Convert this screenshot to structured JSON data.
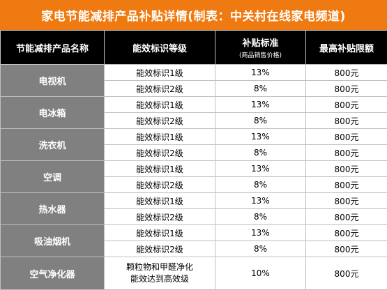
{
  "title": "家电节能减排产品补贴详情(制表：中关村在线家电频道)",
  "headers": {
    "name": "节能减排产品名称",
    "level": "能效标识等级",
    "subsidy": "补贴标准",
    "subsidy_note": "(商品销售价格)",
    "max": "最高补贴限额"
  },
  "rows": [
    {
      "name": "电视机",
      "levels": [
        {
          "level": "能效标识1级",
          "rate": "13%",
          "max": "800元"
        },
        {
          "level": "能效标识2级",
          "rate": "8%",
          "max": "800元"
        }
      ]
    },
    {
      "name": "电冰箱",
      "levels": [
        {
          "level": "能效标识1级",
          "rate": "13%",
          "max": "800元"
        },
        {
          "level": "能效标识2级",
          "rate": "8%",
          "max": "800元"
        }
      ]
    },
    {
      "name": "洗衣机",
      "levels": [
        {
          "level": "能效标识1级",
          "rate": "13%",
          "max": "800元"
        },
        {
          "level": "能效标识2级",
          "rate": "8%",
          "max": "800元"
        }
      ]
    },
    {
      "name": "空调",
      "levels": [
        {
          "level": "能效标识1级",
          "rate": "13%",
          "max": "800元"
        },
        {
          "level": "能效标识2级",
          "rate": "8%",
          "max": "800元"
        }
      ]
    },
    {
      "name": "热水器",
      "levels": [
        {
          "level": "能效标识1级",
          "rate": "13%",
          "max": "800元"
        },
        {
          "level": "能效标识2级",
          "rate": "8%",
          "max": "800元"
        }
      ]
    },
    {
      "name": "吸油烟机",
      "levels": [
        {
          "level": "能效标识1级",
          "rate": "13%",
          "max": "800元"
        },
        {
          "level": "能效标识2级",
          "rate": "8%",
          "max": "800元"
        }
      ]
    }
  ],
  "last_row": {
    "name": "空气净化器",
    "level_line1": "颗粒物和甲醛净化",
    "level_line2": "能效达到高效级",
    "rate": "10%",
    "max": "800元"
  }
}
